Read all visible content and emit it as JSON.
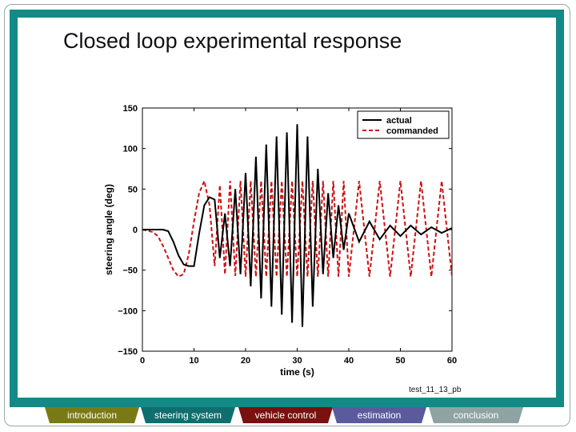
{
  "slide": {
    "title": "Closed loop experimental response",
    "caption": "test_11_13_pb"
  },
  "navigation": [
    {
      "label": "introduction",
      "color": "#7a7a14"
    },
    {
      "label": "steering system",
      "color": "#0f6e6e"
    },
    {
      "label": "vehicle control",
      "color": "#7a1010"
    },
    {
      "label": "estimation",
      "color": "#5a5a9c"
    },
    {
      "label": "conclusion",
      "color": "#8fa3a3"
    }
  ],
  "chart_data": {
    "type": "line",
    "xlabel": "time (s)",
    "ylabel": "steering angle (deg)",
    "xlim": [
      0,
      60
    ],
    "ylim": [
      -150,
      150
    ],
    "xticks": [
      0,
      10,
      20,
      30,
      40,
      50,
      60
    ],
    "yticks": [
      150,
      100,
      50,
      0,
      -50,
      -100,
      -150
    ],
    "ytick_labels": [
      "150",
      "100",
      "50",
      "0",
      "−50",
      "−100",
      "−150"
    ],
    "legend_position": "top-right",
    "series": [
      {
        "name": "actual",
        "color": "#000000",
        "style": "solid",
        "x": [
          0,
          2,
          4,
          5,
          6,
          7,
          8,
          9,
          10,
          11,
          12,
          13,
          14,
          15,
          16,
          17,
          18,
          19,
          20,
          21,
          22,
          23,
          24,
          25,
          26,
          27,
          28,
          29,
          30,
          31,
          32,
          33,
          34,
          35,
          36,
          37,
          38,
          39,
          40,
          42,
          44,
          46,
          48,
          50,
          52,
          54,
          56,
          58,
          60
        ],
        "y": [
          0,
          0,
          0,
          -2,
          -15,
          -32,
          -43,
          -45,
          -45,
          -5,
          30,
          40,
          37,
          -35,
          20,
          -45,
          50,
          -55,
          70,
          -70,
          90,
          -85,
          105,
          -95,
          115,
          -105,
          120,
          -115,
          130,
          -120,
          115,
          -95,
          75,
          -55,
          45,
          -35,
          30,
          -25,
          20,
          -15,
          10,
          -12,
          5,
          -8,
          5,
          -6,
          3,
          -4,
          2
        ]
      },
      {
        "name": "commanded",
        "color": "#cc1111",
        "style": "dashed",
        "x": [
          0,
          2,
          3,
          4,
          5,
          6,
          7,
          8,
          9,
          10,
          11,
          12,
          13,
          14,
          15,
          16,
          17,
          18,
          19,
          20,
          21,
          22,
          23,
          24,
          25,
          26,
          27,
          28,
          29,
          30,
          31,
          32,
          33,
          34,
          35,
          36,
          37,
          38,
          39,
          40,
          42,
          44,
          46,
          48,
          50,
          52,
          54,
          56,
          58,
          60
        ],
        "y": [
          0,
          -3,
          -8,
          -20,
          -35,
          -50,
          -58,
          -55,
          -30,
          10,
          45,
          60,
          30,
          -45,
          55,
          -55,
          60,
          -57,
          60,
          -58,
          60,
          -58,
          60,
          -58,
          60,
          -58,
          60,
          -58,
          60,
          -58,
          60,
          -58,
          60,
          -58,
          60,
          -58,
          60,
          -58,
          60,
          -58,
          60,
          -58,
          60,
          -58,
          60,
          -58,
          60,
          -58,
          60,
          -58
        ]
      }
    ]
  }
}
